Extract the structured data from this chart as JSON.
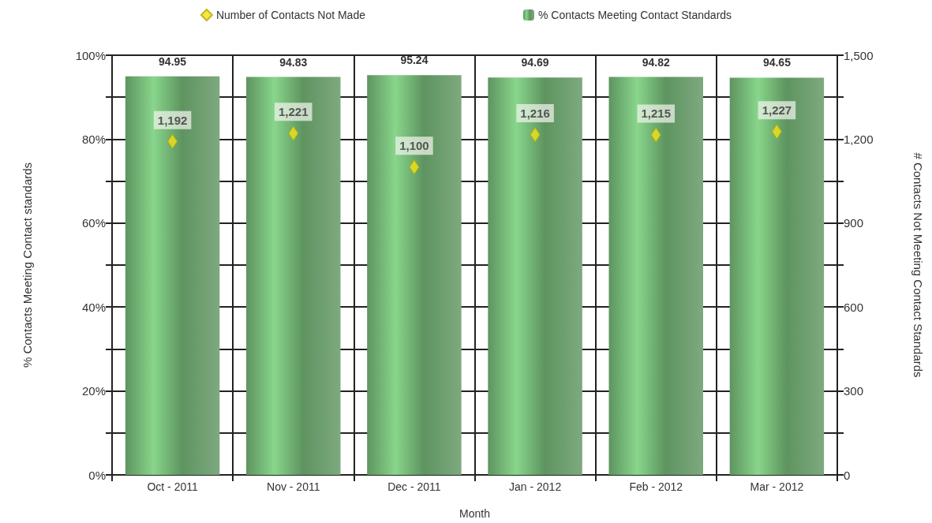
{
  "chart_data": {
    "type": "bar",
    "xlabel": "Month",
    "ylabel": "% Contacts Meeting Contact standards",
    "y2label": "# Contacts Not Meeting Contact Standards",
    "categories": [
      "Oct - 2011",
      "Nov - 2011",
      "Dec - 2011",
      "Jan - 2012",
      "Feb - 2012",
      "Mar - 2012"
    ],
    "series": [
      {
        "type": "scatter",
        "name": "Number of Contacts Not Made",
        "color": "#f0e41a",
        "axis": "y2",
        "values": [
          1192,
          1221,
          1100,
          1216,
          1215,
          1227
        ],
        "value_labels": [
          "1,192",
          "1,221",
          "1,100",
          "1,216",
          "1,215",
          "1,227"
        ]
      },
      {
        "name": "% Contacts Meeting Contact Standards",
        "color": "#5e9460",
        "values": [
          94.95,
          94.83,
          95.24,
          94.69,
          94.82,
          94.65
        ],
        "value_labels": [
          "94.95",
          "94.83",
          "95.24",
          "94.69",
          "94.82",
          "94.65"
        ]
      }
    ],
    "ylim": [
      0,
      100
    ],
    "yticks": [
      {
        "value": 0,
        "label": "0%"
      },
      {
        "value": 10,
        "label": null
      },
      {
        "value": 20,
        "label": "20%"
      },
      {
        "value": 30,
        "label": null
      },
      {
        "value": 40,
        "label": "40%"
      },
      {
        "value": 50,
        "label": null
      },
      {
        "value": 60,
        "label": "60%"
      },
      {
        "value": 70,
        "label": null
      },
      {
        "value": 80,
        "label": "80%"
      },
      {
        "value": 90,
        "label": null
      },
      {
        "value": 100,
        "label": "100%"
      }
    ],
    "y2lim": [
      0,
      1500
    ],
    "y2ticks": [
      0,
      {
        "value": 150,
        "label": null
      },
      300,
      {
        "value": 450,
        "label": null
      },
      600,
      {
        "value": 750,
        "label": null
      },
      900,
      {
        "value": 1050,
        "label": null
      },
      {
        "value": 1200,
        "label": "1,200"
      },
      {
        "value": 1350,
        "label": null
      },
      {
        "value": 1500,
        "label": "1,500"
      }
    ],
    "grid": true,
    "legend": "top",
    "marker": "diamond"
  }
}
